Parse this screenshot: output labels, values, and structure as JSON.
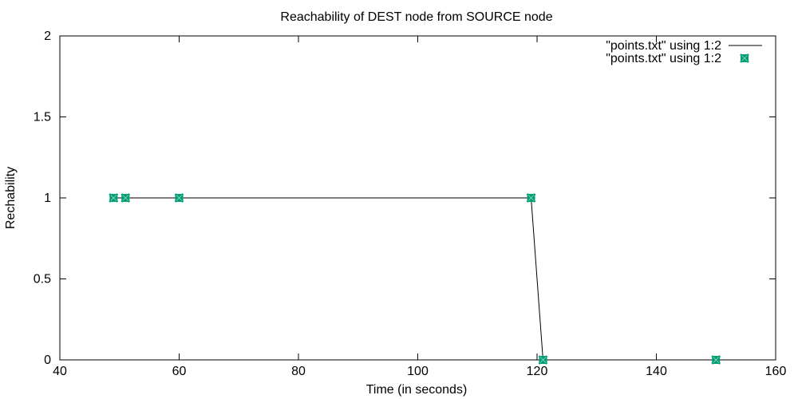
{
  "chart_data": {
    "type": "line",
    "title": "Reachability of DEST node from SOURCE node",
    "xlabel": "Time (in seconds)",
    "ylabel": "Rechability",
    "xlim": [
      40,
      160
    ],
    "ylim": [
      0,
      2
    ],
    "x_ticks": [
      40,
      60,
      80,
      100,
      120,
      140,
      160
    ],
    "y_ticks": [
      0,
      0.5,
      1,
      1.5,
      2
    ],
    "x_tick_labels": [
      "40",
      "60",
      "80",
      "100",
      "120",
      "140",
      "160"
    ],
    "y_tick_labels": [
      "0",
      "0.5",
      "1",
      "1.5",
      "2"
    ],
    "grid": false,
    "legend_position": "top-right",
    "series": [
      {
        "name": "\"points.txt\" using 1:2",
        "style": "line",
        "color": "#000000",
        "x": [
          49,
          51,
          60,
          119,
          121,
          150
        ],
        "y": [
          1,
          1,
          1,
          1,
          0,
          0
        ]
      },
      {
        "name": "\"points.txt\" using 1:2",
        "style": "points",
        "color": "#009e73",
        "x": [
          49,
          51,
          60,
          119,
          121,
          150
        ],
        "y": [
          1,
          1,
          1,
          1,
          0,
          0
        ]
      }
    ]
  }
}
